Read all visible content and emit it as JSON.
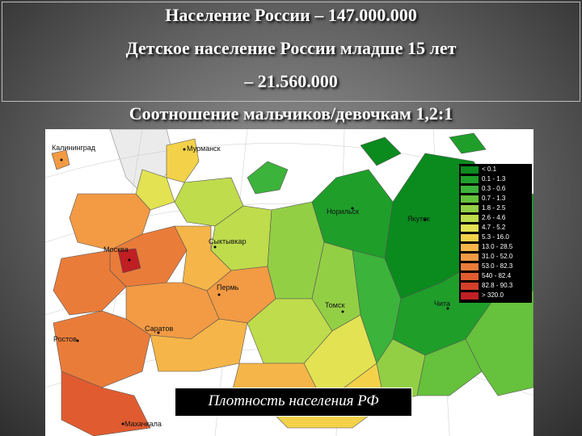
{
  "slide": {
    "title_lines": [
      "Население России – 147.000.000",
      "Детское население России младше 15 лет",
      "– 21.560.000",
      "Соотношение мальчиков/девочкам  1,2:1"
    ]
  },
  "map": {
    "caption": "Плотность населения РФ",
    "cities": [
      {
        "name": "Калининград"
      },
      {
        "name": "Мурманск"
      },
      {
        "name": "Норильск"
      },
      {
        "name": "Якутск"
      },
      {
        "name": "Сыктывкар"
      },
      {
        "name": "Москва"
      },
      {
        "name": "Пермь"
      },
      {
        "name": "Томск"
      },
      {
        "name": "Чита"
      },
      {
        "name": "Саратов"
      },
      {
        "name": "Ростов"
      },
      {
        "name": "Махачкала"
      }
    ],
    "legend": [
      {
        "label": "< 0.1",
        "color": "#0b8a1e"
      },
      {
        "label": "0.1 - 1.3",
        "color": "#1f9e2a"
      },
      {
        "label": "0.3 - 0.6",
        "color": "#3cb33a"
      },
      {
        "label": "0.7 - 1.3",
        "color": "#66c13c"
      },
      {
        "label": "1.8 - 2.5",
        "color": "#93cf45"
      },
      {
        "label": "2.6 - 4.6",
        "color": "#bfdc4c"
      },
      {
        "label": "4.7 - 5.2",
        "color": "#e3e252"
      },
      {
        "label": "5.3 - 16.0",
        "color": "#f3d24a"
      },
      {
        "label": "13.0 - 28.5",
        "color": "#f5b548"
      },
      {
        "label": "31.0 - 52.0",
        "color": "#f29a44"
      },
      {
        "label": "53.0 - 82.3",
        "color": "#ea7c3a"
      },
      {
        "label": "540 - 82.4",
        "color": "#e05c30"
      },
      {
        "label": "82.8 - 90.3",
        "color": "#d43f2a"
      },
      {
        "label": "> 320.0",
        "color": "#c01f24"
      }
    ]
  }
}
